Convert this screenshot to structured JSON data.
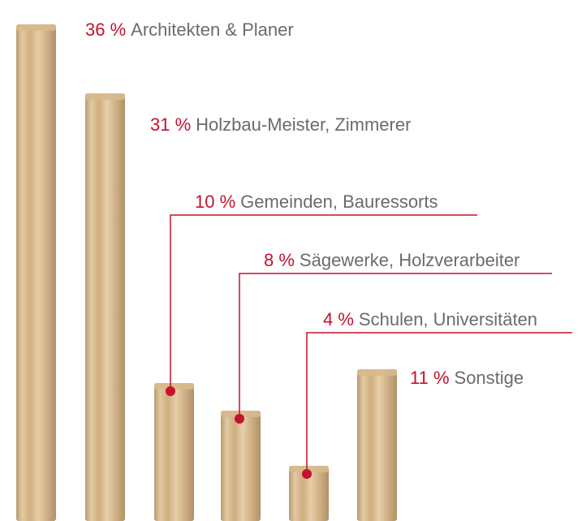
{
  "chart_data": {
    "type": "bar",
    "categories": [
      "Architekten & Planer",
      "Holzbau-Meister, Zimmerer",
      "Gemeinden, Bauressorts",
      "Sägewerke, Holzverarbeiter",
      "Schulen, Universitäten",
      "Sonstige"
    ],
    "values": [
      36,
      31,
      10,
      8,
      4,
      11
    ],
    "value_labels": [
      "36 %",
      "31 %",
      "10 %",
      "8 %",
      "4 %",
      "11 %"
    ],
    "color": "#d8b98c",
    "label_color": "#c4122f"
  }
}
